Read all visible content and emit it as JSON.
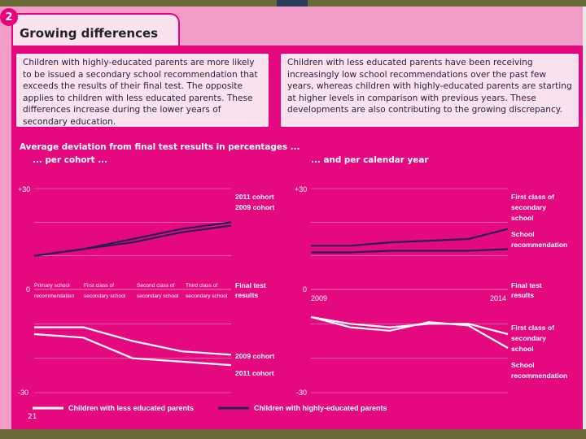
{
  "figure_number": "2",
  "title": "Growing differences",
  "note_left": "Children with highly-educated parents are more likely to be issued a secondary school recommendation that exceeds the results of their final test. The opposite applies to children with less educated parents. These differences increase during the lower years of secondary education.",
  "note_right": "Children with less educated parents have been receiving increasingly low school recommendations over the past few years, whereas children with highly-educated parents are starting at higher levels in comparison with previous years. These developments are also contributing to the growing discrepancy.",
  "chart_heading": "Average deviation from final test results in percentages ...",
  "page_number": "21",
  "colors": {
    "high": "#2a1d52",
    "low": "#ffffff",
    "background": "#e5097f"
  },
  "chart_data": [
    {
      "type": "line",
      "subtitle": "... per cohort ...",
      "categories": [
        "Primary school recommendation",
        "First class of secondary school",
        "Second class of secondary school",
        "Third class of secondary school",
        "Final test results"
      ],
      "ylim": [
        -30,
        30
      ],
      "yticks": [
        "+30",
        "0",
        "-30"
      ],
      "grid": true,
      "series": [
        {
          "name": "2011 cohort",
          "group": "high",
          "values": [
            10,
            12,
            15,
            18,
            20
          ]
        },
        {
          "name": "2009 cohort",
          "group": "high",
          "values": [
            10,
            12,
            14,
            17,
            19
          ]
        },
        {
          "name": "2009 cohort",
          "group": "low",
          "values": [
            -11,
            -11,
            -15,
            -18,
            -19
          ]
        },
        {
          "name": "2011 cohort",
          "group": "low",
          "values": [
            -13,
            -14,
            -20,
            -21,
            -22
          ]
        }
      ]
    },
    {
      "type": "line",
      "subtitle": "... and per calendar year",
      "x": [
        2009,
        2010,
        2011,
        2012,
        2013,
        2014
      ],
      "xtick_labels": [
        "2009",
        "2014"
      ],
      "xlabel_right": "Final test results",
      "ylim": [
        -30,
        30
      ],
      "yticks": [
        "+30",
        "0",
        "-30"
      ],
      "grid": true,
      "series": [
        {
          "name": "First class of secondary school",
          "group": "high",
          "values": [
            13,
            13,
            14,
            14.5,
            15,
            18
          ]
        },
        {
          "name": "School recommendation",
          "group": "high",
          "values": [
            11,
            11,
            11.5,
            11.5,
            11.5,
            12
          ]
        },
        {
          "name": "First class of secondary school",
          "group": "low",
          "values": [
            -8,
            -10,
            -11,
            -10,
            -10,
            -13
          ]
        },
        {
          "name": "School recommendation",
          "group": "low",
          "values": [
            -8,
            -11,
            -12,
            -9.5,
            -10.5,
            -17
          ]
        }
      ]
    }
  ],
  "legend": {
    "low_label": "Children with less educated parents",
    "high_label": "Children with highly-educated parents"
  }
}
